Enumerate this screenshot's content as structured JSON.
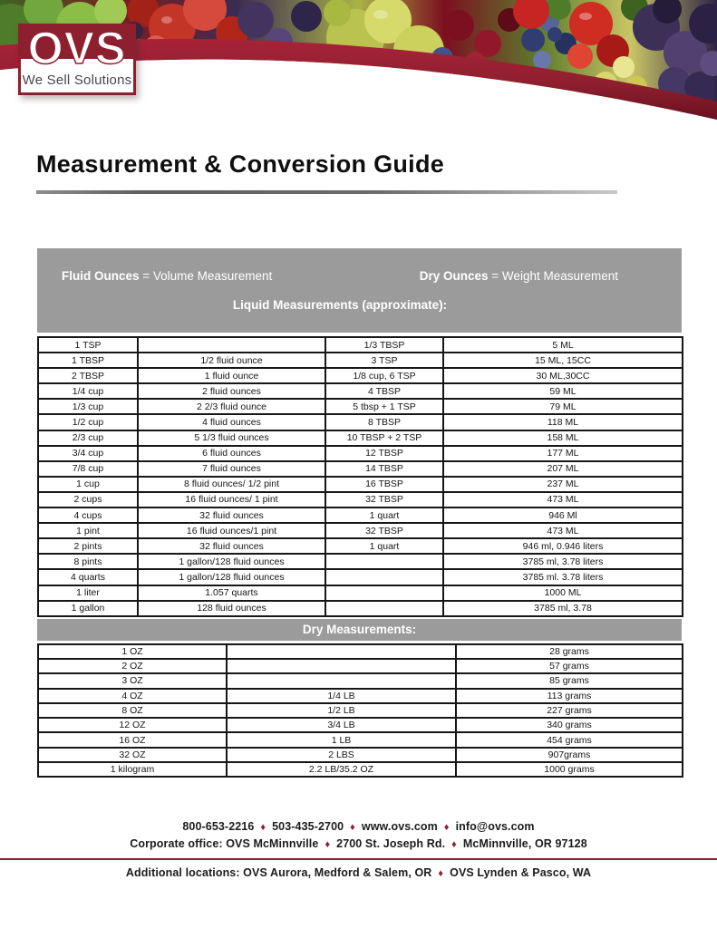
{
  "page": {
    "title": "Measurement & Conversion Guide"
  },
  "logo": {
    "acronym": "OVS",
    "tagline": "We Sell Solutions"
  },
  "colors": {
    "accent_maroon": "#8e1f2f",
    "band_gray": "#9b9b9b"
  },
  "legend": {
    "fluid_bold": "Fluid Ounces",
    "fluid_rest": " = Volume Measurement",
    "dry_bold": "Dry Ounces",
    "dry_rest": " = Weight Measurement",
    "liquid_header": "Liquid Measurements (approximate):",
    "dry_header": "Dry Measurements:"
  },
  "liquid_table": {
    "rows": [
      [
        "1 TSP",
        "",
        "1/3 TBSP",
        "5 ML"
      ],
      [
        "1 TBSP",
        "1/2 fluid ounce",
        "3 TSP",
        "15 ML, 15CC"
      ],
      [
        "2 TBSP",
        "1 fluid ounce",
        "1/8 cup, 6 TSP",
        "30 ML,30CC"
      ],
      [
        "1/4 cup",
        "2 fluid ounces",
        "4 TBSP",
        "59 ML"
      ],
      [
        "1/3 cup",
        "2 2/3 fluid ounce",
        "5 tbsp + 1 TSP",
        "79 ML"
      ],
      [
        "1/2 cup",
        "4 fluid ounces",
        "8 TBSP",
        "118 ML"
      ],
      [
        "2/3 cup",
        "5 1/3 fluid ounces",
        "10 TBSP + 2 TSP",
        "158 ML"
      ],
      [
        "3/4 cup",
        "6 fluid ounces",
        "12 TBSP",
        "177 ML"
      ],
      [
        "7/8 cup",
        "7 fluid ounces",
        "14 TBSP",
        "207 ML"
      ],
      [
        "1 cup",
        "8 fluid ounces/ 1/2 pint",
        "16 TBSP",
        "237 ML"
      ],
      [
        "2 cups",
        "16 fluid ounces/ 1 pint",
        "32 TBSP",
        "473 ML"
      ],
      [
        "4 cups",
        "32 fluid ounces",
        "1 quart",
        "946 Ml"
      ],
      [
        "1 pint",
        "16 fluid ounces/1 pint",
        "32 TBSP",
        "473 ML"
      ],
      [
        "2 pints",
        "32 fluid ounces",
        "1 quart",
        "946 ml, 0.946 liters"
      ],
      [
        "8 pints",
        "1 gallon/128 fluid ounces",
        "",
        "3785 ml, 3.78 liters"
      ],
      [
        "4 quarts",
        "1 gallon/128 fluid ounces",
        "",
        "3785 ml. 3.78 liters"
      ],
      [
        "1 liter",
        "1.057 quarts",
        "",
        "1000 ML"
      ],
      [
        "1 gallon",
        "128 fluid ounces",
        "",
        "3785 ml, 3.78"
      ]
    ]
  },
  "dry_table": {
    "rows": [
      [
        "1 OZ",
        "",
        "28 grams"
      ],
      [
        "2 OZ",
        "",
        "57 grams"
      ],
      [
        "3 OZ",
        "",
        "85 grams"
      ],
      [
        "4 OZ",
        "1/4 LB",
        "113 grams"
      ],
      [
        "8 OZ",
        "1/2 LB",
        "227 grams"
      ],
      [
        "12 OZ",
        "3/4 LB",
        "340 grams"
      ],
      [
        "16 OZ",
        "1 LB",
        "454 grams"
      ],
      [
        "32 OZ",
        "2 LBS",
        "907grams"
      ],
      [
        "1 kilogram",
        "2.2 LB/35.2 OZ",
        "1000 grams"
      ]
    ]
  },
  "footer": {
    "separator": "♦",
    "line1": [
      "800-653-2216",
      "503-435-2700",
      "www.ovs.com",
      "info@ovs.com"
    ],
    "line2": [
      "Corporate office: OVS McMinnville",
      "2700 St. Joseph Rd.",
      "McMinnville, OR 97128"
    ],
    "line3": [
      "Additional locations: OVS Aurora, Medford & Salem, OR",
      "OVS Lynden & Pasco, WA"
    ]
  }
}
